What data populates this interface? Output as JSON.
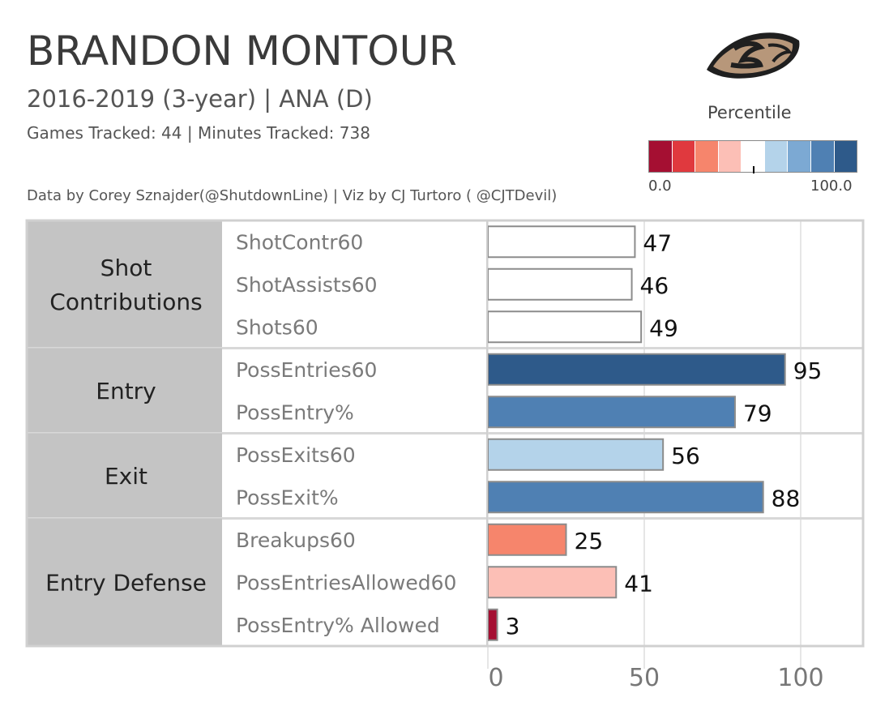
{
  "header": {
    "title": "BRANDON MONTOUR",
    "subtitle": "2016-2019 (3-year) | ANA (D)",
    "games_line": "Games Tracked: 44  | Minutes Tracked: 738",
    "credit": "Data by Corey Sznajder(@ShutdownLine) | Viz by CJ Turtoro ( @CJTDevil)"
  },
  "legend": {
    "title": "Percentile",
    "min_label": "0.0",
    "max_label": "100.0",
    "colors": [
      "#a50f32",
      "#e0393e",
      "#f6856c",
      "#fcbfb6",
      "#ffffff",
      "#b4d3ea",
      "#7ca9d3",
      "#4f80b3",
      "#2e5a8a"
    ]
  },
  "chart_data": {
    "type": "bar",
    "orientation": "horizontal",
    "xlim": [
      0,
      100
    ],
    "x_ticks": [
      "0",
      "50",
      "100"
    ],
    "groups": [
      {
        "name": "Shot Contributions",
        "metrics": [
          {
            "label": "ShotContr60",
            "value": 47,
            "color": "#ffffff"
          },
          {
            "label": "ShotAssists60",
            "value": 46,
            "color": "#ffffff"
          },
          {
            "label": "Shots60",
            "value": 49,
            "color": "#ffffff"
          }
        ]
      },
      {
        "name": "Entry",
        "metrics": [
          {
            "label": "PossEntries60",
            "value": 95,
            "color": "#2e5a8a"
          },
          {
            "label": "PossEntry%",
            "value": 79,
            "color": "#4f80b3"
          }
        ]
      },
      {
        "name": "Exit",
        "metrics": [
          {
            "label": "PossExits60",
            "value": 56,
            "color": "#b4d3ea"
          },
          {
            "label": "PossExit%",
            "value": 88,
            "color": "#4f80b3"
          }
        ]
      },
      {
        "name": "Entry Defense",
        "metrics": [
          {
            "label": "Breakups60",
            "value": 25,
            "color": "#f6856c"
          },
          {
            "label": "PossEntriesAllowed60",
            "value": 41,
            "color": "#fcbfb6"
          },
          {
            "label": "PossEntry% Allowed",
            "value": 3,
            "color": "#a50f32"
          }
        ]
      }
    ]
  }
}
